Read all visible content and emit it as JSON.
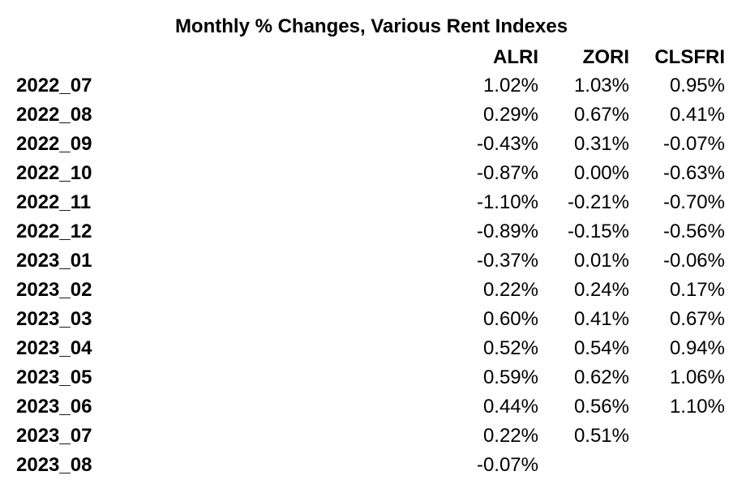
{
  "chart_data": {
    "type": "table",
    "title": "Monthly % Changes, Various Rent Indexes",
    "columns": [
      "ALRI",
      "ZORI",
      "CLSFRI"
    ],
    "rows": [
      {
        "label": "2022_07",
        "values": [
          "1.02%",
          "1.03%",
          "0.95%"
        ]
      },
      {
        "label": "2022_08",
        "values": [
          "0.29%",
          "0.67%",
          "0.41%"
        ]
      },
      {
        "label": "2022_09",
        "values": [
          "-0.43%",
          "0.31%",
          "-0.07%"
        ]
      },
      {
        "label": "2022_10",
        "values": [
          "-0.87%",
          "0.00%",
          "-0.63%"
        ]
      },
      {
        "label": "2022_11",
        "values": [
          "-1.10%",
          "-0.21%",
          "-0.70%"
        ]
      },
      {
        "label": "2022_12",
        "values": [
          "-0.89%",
          "-0.15%",
          "-0.56%"
        ]
      },
      {
        "label": "2023_01",
        "values": [
          "-0.37%",
          "0.01%",
          "-0.06%"
        ]
      },
      {
        "label": "2023_02",
        "values": [
          "0.22%",
          "0.24%",
          "0.17%"
        ]
      },
      {
        "label": "2023_03",
        "values": [
          "0.60%",
          "0.41%",
          "0.67%"
        ]
      },
      {
        "label": "2023_04",
        "values": [
          "0.52%",
          "0.54%",
          "0.94%"
        ]
      },
      {
        "label": "2023_05",
        "values": [
          "0.59%",
          "0.62%",
          "1.06%"
        ]
      },
      {
        "label": "2023_06",
        "values": [
          "0.44%",
          "0.56%",
          "1.10%"
        ]
      },
      {
        "label": "2023_07",
        "values": [
          "0.22%",
          "0.51%",
          ""
        ]
      },
      {
        "label": "2023_08",
        "values": [
          "-0.07%",
          "",
          ""
        ]
      }
    ]
  }
}
